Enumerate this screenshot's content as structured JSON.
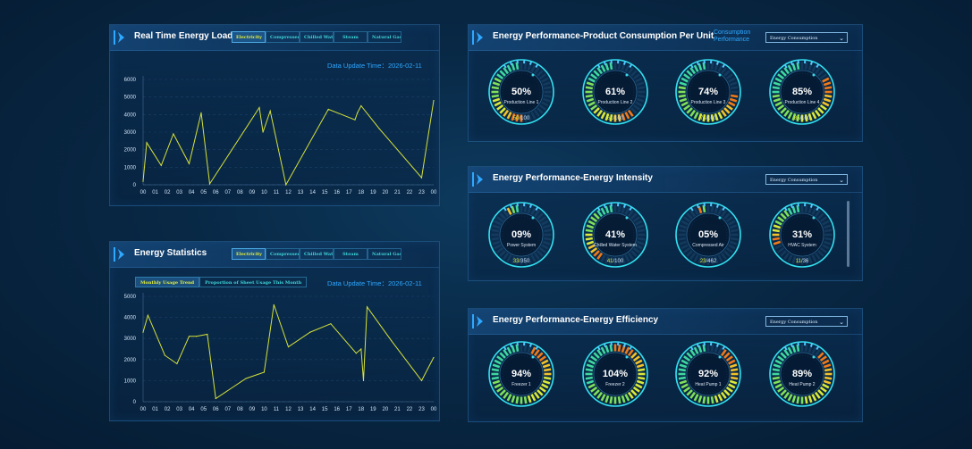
{
  "colors": {
    "accent": "#2fa8ff",
    "line": "#d6e23a",
    "tab_active_text": "#e4ef3a",
    "tab_text": "#3fd4d8"
  },
  "realtime": {
    "title": "Real Time Energy Load",
    "tabs": [
      "Electricity",
      "Compressed Air",
      "Chilled Water",
      "Steam",
      "Natural Gas"
    ],
    "update": "Data Update Time：2026-02-11"
  },
  "statistics": {
    "title": "Energy Statistics",
    "tabs": [
      "Electricity",
      "Compressed Air",
      "Chilled Water",
      "Steam",
      "Natural Gas"
    ],
    "subtabs": [
      "Monthly Usage Trend",
      "Proportion of Sheet Usage This Month"
    ],
    "update": "Data Update Time：2026-02-11"
  },
  "chart_data": [
    {
      "type": "line",
      "title": "",
      "categories": [
        "00",
        "01",
        "02",
        "03",
        "04",
        "05",
        "06",
        "07",
        "08",
        "09",
        "10",
        "11",
        "12",
        "13",
        "14",
        "15",
        "16",
        "17",
        "18",
        "19",
        "20",
        "21",
        "22",
        "23",
        "00"
      ],
      "ylim": [
        0,
        6000
      ],
      "yticks": [
        "0",
        "1000",
        "2000",
        "3000",
        "4000",
        "5000",
        "6000"
      ],
      "points": [
        [
          0,
          200
        ],
        [
          0.3,
          2400
        ],
        [
          1.5,
          1100
        ],
        [
          2.5,
          2900
        ],
        [
          3.8,
          1200
        ],
        [
          4.8,
          4100
        ],
        [
          5.5,
          50
        ],
        [
          9.6,
          4400
        ],
        [
          9.9,
          3000
        ],
        [
          10.5,
          4200
        ],
        [
          11.8,
          0
        ],
        [
          15.3,
          4300
        ],
        [
          17.5,
          3700
        ],
        [
          17.7,
          4100
        ],
        [
          18,
          4500
        ],
        [
          19.5,
          3200
        ],
        [
          23,
          400
        ],
        [
          24,
          4800
        ]
      ],
      "grid": true
    },
    {
      "type": "line",
      "title": "",
      "categories": [
        "00",
        "01",
        "02",
        "03",
        "04",
        "05",
        "06",
        "07",
        "08",
        "09",
        "10",
        "11",
        "12",
        "13",
        "14",
        "15",
        "16",
        "17",
        "18",
        "19",
        "20",
        "21",
        "22",
        "23",
        "00"
      ],
      "ylim": [
        0,
        5000
      ],
      "yticks": [
        "0",
        "1000",
        "2000",
        "3000",
        "4000",
        "5000"
      ],
      "points": [
        [
          0,
          3300
        ],
        [
          0.4,
          4100
        ],
        [
          1.8,
          2200
        ],
        [
          2.8,
          1800
        ],
        [
          3.8,
          3100
        ],
        [
          4.4,
          3100
        ],
        [
          5.3,
          3200
        ],
        [
          6,
          150
        ],
        [
          8.5,
          1100
        ],
        [
          10,
          1400
        ],
        [
          10.8,
          4600
        ],
        [
          12,
          2600
        ],
        [
          13.8,
          3300
        ],
        [
          15.5,
          3700
        ],
        [
          17.6,
          2300
        ],
        [
          18,
          2500
        ],
        [
          18.2,
          1000
        ],
        [
          18.5,
          4500
        ],
        [
          20.5,
          2900
        ],
        [
          23,
          1000
        ],
        [
          24,
          2100
        ]
      ],
      "grid": true
    }
  ],
  "product": {
    "title": "Energy Performance-Product Consumption Per Unit",
    "perf_label": "Consumption Performance",
    "select": "Energy Consumption",
    "gauges": [
      {
        "pct": "50%",
        "label": "Production Line 1",
        "count": "50",
        "total": "100",
        "value": 0.5
      },
      {
        "pct": "61%",
        "label": "Production Line 2",
        "count": "61",
        "total": "100",
        "value": 0.61
      },
      {
        "pct": "74%",
        "label": "Production Line 3",
        "count": "74",
        "total": "100",
        "value": 0.74
      },
      {
        "pct": "85%",
        "label": "Production Line 4",
        "count": "85",
        "total": "100",
        "value": 0.85
      }
    ]
  },
  "intensity": {
    "title": "Energy Performance-Energy Intensity",
    "select": "Energy Consumption",
    "gauges": [
      {
        "pct": "09%",
        "label": "Power System",
        "count": "33",
        "total": "350",
        "value": 0.09
      },
      {
        "pct": "41%",
        "label": "Chilled Water System",
        "count": "41",
        "total": "100",
        "value": 0.41
      },
      {
        "pct": "05%",
        "label": "Compressed Air",
        "count": "23",
        "total": "462",
        "value": 0.05
      },
      {
        "pct": "31%",
        "label": "HVAC System",
        "count": "11",
        "total": "36",
        "value": 0.31
      }
    ]
  },
  "efficiency": {
    "title": "Energy Performance-Energy Efficiency",
    "select": "Energy Consumption",
    "gauges": [
      {
        "pct": "94%",
        "label": "Freezer 1",
        "value": 0.94
      },
      {
        "pct": "104%",
        "label": "Freezer 2",
        "value": 1.04
      },
      {
        "pct": "92%",
        "label": "Heat Pump 1",
        "value": 0.92
      },
      {
        "pct": "89%",
        "label": "Heat Pump 2",
        "value": 0.89
      }
    ]
  }
}
